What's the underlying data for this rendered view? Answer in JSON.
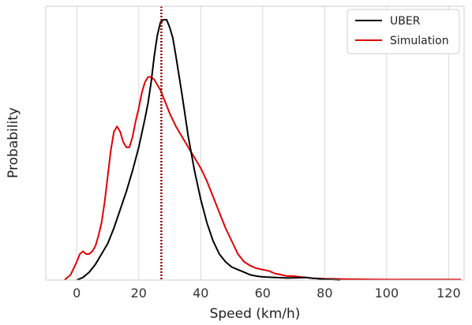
{
  "chart_data": {
    "type": "line",
    "title": "",
    "xlabel": "Speed (km/h)",
    "ylabel": "Probability",
    "xlim": [
      -10,
      125
    ],
    "ylim": [
      0,
      1.0
    ],
    "x_ticks": [
      0,
      20,
      40,
      60,
      80,
      100,
      120
    ],
    "y_ticks_shown": false,
    "grid": "vertical",
    "legend_position": "top-right",
    "vline": {
      "x": 27.3,
      "style": "dotted",
      "color": "#8b0000"
    },
    "series": [
      {
        "name": "UBER",
        "color": "#000000",
        "points": [
          [
            0,
            0
          ],
          [
            2,
            0.01
          ],
          [
            4,
            0.03
          ],
          [
            6,
            0.06
          ],
          [
            8,
            0.1
          ],
          [
            10,
            0.14
          ],
          [
            12,
            0.2
          ],
          [
            14,
            0.27
          ],
          [
            16,
            0.34
          ],
          [
            18,
            0.42
          ],
          [
            20,
            0.51
          ],
          [
            22,
            0.62
          ],
          [
            23,
            0.68
          ],
          [
            24,
            0.76
          ],
          [
            25,
            0.86
          ],
          [
            26,
            0.94
          ],
          [
            27,
            0.99
          ],
          [
            28,
            1.0
          ],
          [
            29,
            1.0
          ],
          [
            30,
            0.97
          ],
          [
            31,
            0.93
          ],
          [
            32,
            0.86
          ],
          [
            34,
            0.71
          ],
          [
            36,
            0.55
          ],
          [
            38,
            0.42
          ],
          [
            40,
            0.31
          ],
          [
            42,
            0.22
          ],
          [
            44,
            0.15
          ],
          [
            46,
            0.1
          ],
          [
            48,
            0.07
          ],
          [
            50,
            0.05
          ],
          [
            52,
            0.04
          ],
          [
            54,
            0.03
          ],
          [
            56,
            0.02
          ],
          [
            58,
            0.015
          ],
          [
            60,
            0.012
          ],
          [
            64,
            0.01
          ],
          [
            68,
            0.008
          ],
          [
            72,
            0.009
          ],
          [
            74,
            0.01
          ],
          [
            76,
            0.007
          ],
          [
            80,
            0.003
          ],
          [
            85,
            0
          ]
        ]
      },
      {
        "name": "Simulation",
        "color": "#e00000",
        "points": [
          [
            -4,
            0
          ],
          [
            -2,
            0.02
          ],
          [
            0,
            0.07
          ],
          [
            1,
            0.1
          ],
          [
            2,
            0.11
          ],
          [
            3,
            0.1
          ],
          [
            4,
            0.1
          ],
          [
            5,
            0.11
          ],
          [
            6,
            0.13
          ],
          [
            7,
            0.17
          ],
          [
            8,
            0.22
          ],
          [
            9,
            0.3
          ],
          [
            10,
            0.4
          ],
          [
            11,
            0.5
          ],
          [
            12,
            0.57
          ],
          [
            13,
            0.59
          ],
          [
            14,
            0.57
          ],
          [
            15,
            0.53
          ],
          [
            16,
            0.51
          ],
          [
            17,
            0.51
          ],
          [
            18,
            0.55
          ],
          [
            19,
            0.61
          ],
          [
            20,
            0.66
          ],
          [
            21,
            0.72
          ],
          [
            22,
            0.76
          ],
          [
            23,
            0.78
          ],
          [
            24,
            0.78
          ],
          [
            25,
            0.77
          ],
          [
            26,
            0.75
          ],
          [
            27,
            0.73
          ],
          [
            28,
            0.7
          ],
          [
            30,
            0.64
          ],
          [
            32,
            0.59
          ],
          [
            34,
            0.55
          ],
          [
            36,
            0.51
          ],
          [
            38,
            0.47
          ],
          [
            40,
            0.43
          ],
          [
            42,
            0.38
          ],
          [
            44,
            0.32
          ],
          [
            46,
            0.26
          ],
          [
            48,
            0.2
          ],
          [
            50,
            0.15
          ],
          [
            52,
            0.1
          ],
          [
            54,
            0.07
          ],
          [
            56,
            0.055
          ],
          [
            58,
            0.045
          ],
          [
            60,
            0.04
          ],
          [
            62,
            0.035
          ],
          [
            64,
            0.025
          ],
          [
            66,
            0.02
          ],
          [
            68,
            0.015
          ],
          [
            70,
            0.015
          ],
          [
            72,
            0.012
          ],
          [
            74,
            0.01
          ],
          [
            76,
            0.007
          ],
          [
            80,
            0.005
          ],
          [
            90,
            0.003
          ],
          [
            100,
            0.002
          ],
          [
            110,
            0.002
          ],
          [
            120,
            0.002
          ],
          [
            124,
            0.002
          ]
        ]
      }
    ]
  }
}
